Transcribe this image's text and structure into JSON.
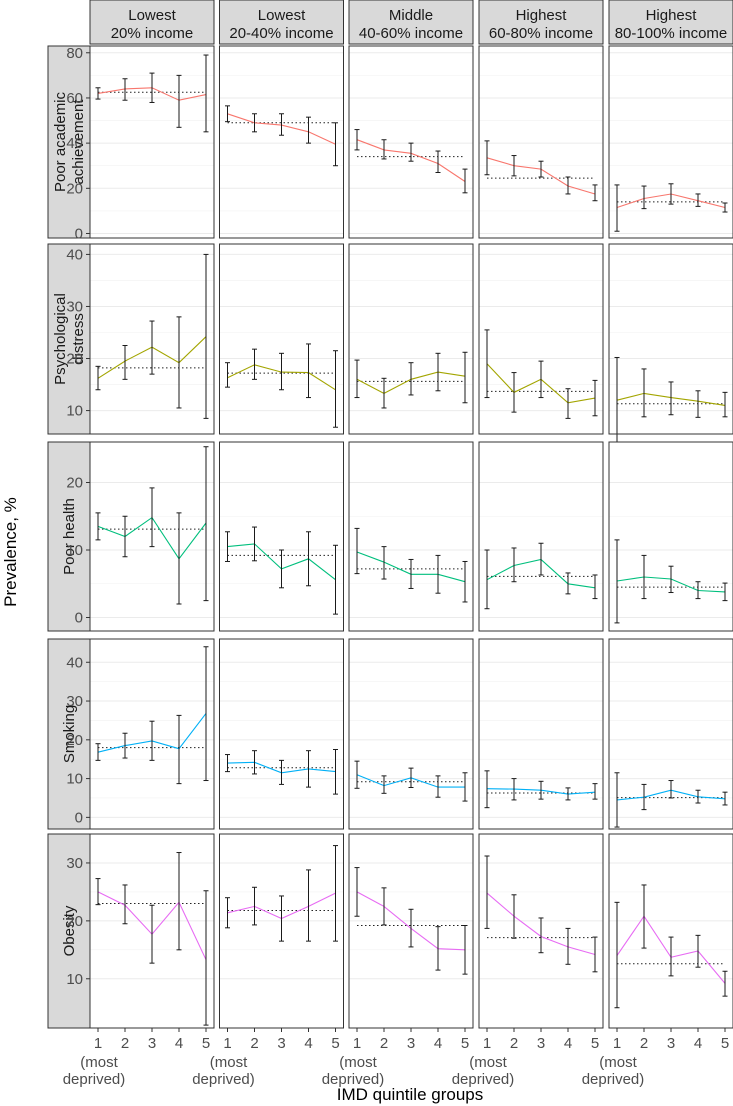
{
  "chart_data": {
    "type": "line",
    "ylabel": "Prevalence, %",
    "xlabel": "IMD quintile groups",
    "x": [
      1,
      2,
      3,
      4,
      5
    ],
    "x_tick_labels": [
      "1",
      "2",
      "3",
      "4",
      "5"
    ],
    "x_tick_note": [
      "(most",
      "deprived)"
    ],
    "grid": true,
    "facet_columns": [
      {
        "line1": "Lowest",
        "line2": "20% income"
      },
      {
        "line1": "Lowest",
        "line2": "20-40% income"
      },
      {
        "line1": "Middle",
        "line2": "40-60% income"
      },
      {
        "line1": "Highest",
        "line2": "60-80% income"
      },
      {
        "line1": "Highest",
        "line2": "80-100% income"
      }
    ],
    "outcomes": [
      {
        "label_lines": [
          "Poor academic",
          "achievement"
        ],
        "color": "#F8766D",
        "ylim": [
          -2,
          83
        ],
        "yticks": [
          0,
          20,
          40,
          60,
          80
        ],
        "panels": [
          {
            "values": [
              62,
              64,
              64.5,
              59,
              61.5
            ],
            "lower": [
              59.5,
              59,
              58,
              47,
              45
            ],
            "upper": [
              64.5,
              68.5,
              71,
              70,
              79
            ],
            "reference": 62.5
          },
          {
            "values": [
              53,
              49,
              48,
              45,
              39.5
            ],
            "lower": [
              49.5,
              45,
              43.5,
              40,
              30
            ],
            "upper": [
              56.5,
              53,
              53,
              51.5,
              49
            ],
            "reference": 49
          },
          {
            "values": [
              41.5,
              37,
              35.5,
              31,
              23
            ],
            "lower": [
              37,
              33,
              32,
              27,
              18
            ],
            "upper": [
              46,
              41.5,
              40,
              36.5,
              28.5
            ],
            "reference": 34
          },
          {
            "values": [
              33.5,
              30,
              28.5,
              21,
              17.5
            ],
            "lower": [
              26,
              25.5,
              25,
              17.5,
              14.5
            ],
            "upper": [
              41,
              34.5,
              32,
              25,
              21.5
            ],
            "reference": 24.5
          },
          {
            "values": [
              11.5,
              15.5,
              17.5,
              14.5,
              11.5
            ],
            "lower": [
              1,
              11,
              13,
              12,
              9.5
            ],
            "upper": [
              21.5,
              21,
              22,
              17.5,
              13.5
            ],
            "reference": 14
          }
        ]
      },
      {
        "label_lines": [
          "Psychological",
          "distress"
        ],
        "color": "#A3A500",
        "ylim": [
          5.5,
          42
        ],
        "yticks": [
          10,
          20,
          30,
          40
        ],
        "panels": [
          {
            "values": [
              16.2,
              19.5,
              22.2,
              19.2,
              24.2
            ],
            "lower": [
              14,
              16,
              17,
              10.5,
              8.5
            ],
            "upper": [
              18.5,
              22.5,
              27.2,
              28,
              40
            ],
            "reference": 18.2
          },
          {
            "values": [
              16.3,
              18.8,
              17.4,
              17.3,
              14
            ],
            "lower": [
              14.5,
              16,
              14,
              12.5,
              6.8
            ],
            "upper": [
              19.2,
              21.8,
              21,
              22.8,
              21.5
            ],
            "reference": 17.2
          },
          {
            "values": [
              16,
              13.3,
              16,
              17.4,
              16.6
            ],
            "lower": [
              12.5,
              10.5,
              13,
              13.8,
              11.5
            ],
            "upper": [
              19.7,
              16.2,
              19.2,
              21,
              21.2
            ],
            "reference": 15.6
          },
          {
            "values": [
              19,
              13.5,
              16,
              11.5,
              12.4
            ],
            "lower": [
              12.5,
              9.7,
              12.5,
              8.5,
              9
            ],
            "upper": [
              25.5,
              17.3,
              19.5,
              14.2,
              15.8
            ],
            "reference": 13.7
          },
          {
            "values": [
              12,
              13.3,
              12.5,
              11.8,
              11
            ],
            "lower": [
              3.8,
              8.8,
              9.2,
              8.7,
              8.8
            ],
            "upper": [
              20.2,
              18,
              15.5,
              13.8,
              13.5
            ],
            "reference": 11.3
          }
        ]
      },
      {
        "label_lines": [
          "Poor health"
        ],
        "color": "#00BF7D",
        "ylim": [
          -2,
          26
        ],
        "yticks": [
          0,
          10,
          20
        ],
        "panels": [
          {
            "values": [
              13.5,
              12,
              14.8,
              8.7,
              14
            ],
            "lower": [
              11.5,
              9,
              10.5,
              2,
              2.5
            ],
            "upper": [
              15.5,
              15,
              19.2,
              15.5,
              25.3
            ],
            "reference": 13.1
          },
          {
            "values": [
              10.5,
              10.9,
              7.2,
              8.7,
              5.6
            ],
            "lower": [
              8.3,
              8.4,
              4.4,
              4.7,
              0.5
            ],
            "upper": [
              12.7,
              13.4,
              10,
              12.7,
              10.7
            ],
            "reference": 9.2
          },
          {
            "values": [
              9.7,
              8.2,
              6.4,
              6.4,
              5.3
            ],
            "lower": [
              6.5,
              5.7,
              4.3,
              3.6,
              2.3
            ],
            "upper": [
              13.2,
              10.5,
              8.6,
              9.2,
              8.3
            ],
            "reference": 7.2
          },
          {
            "values": [
              5.6,
              7.7,
              8.6,
              5,
              4.4
            ],
            "lower": [
              1.3,
              5.3,
              6.3,
              3.5,
              2.8
            ],
            "upper": [
              10,
              10.3,
              11,
              6.6,
              6.3
            ],
            "reference": 6.1
          },
          {
            "values": [
              5.4,
              6,
              5.7,
              4,
              3.8
            ],
            "lower": [
              -0.8,
              2.8,
              3.7,
              2.8,
              2.5
            ],
            "upper": [
              11.5,
              9.2,
              7.6,
              5.3,
              5.1
            ],
            "reference": 4.5
          }
        ]
      },
      {
        "label_lines": [
          "Smoking"
        ],
        "color": "#00B0F6",
        "ylim": [
          -3,
          46
        ],
        "yticks": [
          0,
          10,
          20,
          30,
          40
        ],
        "panels": [
          {
            "values": [
              16.8,
              18.5,
              19.7,
              17.7,
              26.8
            ],
            "lower": [
              14.7,
              15.3,
              14.7,
              8.7,
              9.5
            ],
            "upper": [
              19,
              21.7,
              24.8,
              26.3,
              44
            ],
            "reference": 18
          },
          {
            "values": [
              14,
              14.2,
              11.5,
              12.5,
              11.8
            ],
            "lower": [
              11.8,
              11.2,
              8.5,
              7.8,
              6
            ],
            "upper": [
              16.2,
              17.2,
              14.7,
              17.2,
              17.5
            ],
            "reference": 12.8
          },
          {
            "values": [
              11,
              8.2,
              10.2,
              7.8,
              7.8
            ],
            "lower": [
              7.5,
              6.2,
              7.7,
              5.2,
              4.2
            ],
            "upper": [
              14.5,
              10.7,
              12.7,
              10.7,
              11.5
            ],
            "reference": 9.2
          },
          {
            "values": [
              7.4,
              7.3,
              7,
              6,
              6.5
            ],
            "lower": [
              2.5,
              4.5,
              4.7,
              4.5,
              4.7
            ],
            "upper": [
              12,
              10,
              9.3,
              7.6,
              8.7
            ],
            "reference": 6.3
          },
          {
            "values": [
              4.5,
              5.2,
              7,
              5.3,
              4.8
            ],
            "lower": [
              -2.5,
              2,
              5,
              3.7,
              3.2
            ],
            "upper": [
              11.5,
              8.5,
              9.5,
              7,
              6.5
            ],
            "reference": 5.1
          }
        ]
      },
      {
        "label_lines": [
          "Obesity"
        ],
        "color": "#E76BF3",
        "ylim": [
          1.5,
          35
        ],
        "yticks": [
          10,
          20,
          30
        ],
        "panels": [
          {
            "values": [
              25,
              22.7,
              17.7,
              23.2,
              13.3
            ],
            "lower": [
              22.8,
              19.5,
              12.7,
              15,
              2
            ],
            "upper": [
              27.3,
              26.2,
              22.7,
              31.8,
              25.2
            ],
            "reference": 23
          },
          {
            "values": [
              21.4,
              22.5,
              20.4,
              22.5,
              24.8
            ],
            "lower": [
              18.8,
              19.3,
              16.5,
              16.5,
              16.5
            ],
            "upper": [
              24,
              25.8,
              24.3,
              28.8,
              33
            ],
            "reference": 21.8
          },
          {
            "values": [
              25,
              22.5,
              18.7,
              15.2,
              15
            ],
            "lower": [
              20.8,
              19.3,
              15.5,
              11.5,
              10.8
            ],
            "upper": [
              29.2,
              25.7,
              22,
              19,
              19.2
            ],
            "reference": 19.2
          },
          {
            "values": [
              24.8,
              20.8,
              17.3,
              15.5,
              14.2
            ],
            "lower": [
              18.7,
              17,
              14.5,
              12.5,
              11.2
            ],
            "upper": [
              31.2,
              24.5,
              20.5,
              18.7,
              17.2
            ],
            "reference": 17.1
          },
          {
            "values": [
              14,
              20.8,
              13.7,
              14.8,
              9.2
            ],
            "lower": [
              5,
              15.3,
              10.5,
              12,
              7
            ],
            "upper": [
              23.2,
              26.2,
              17.2,
              17.5,
              11.3
            ],
            "reference": 12.6
          }
        ]
      }
    ]
  }
}
